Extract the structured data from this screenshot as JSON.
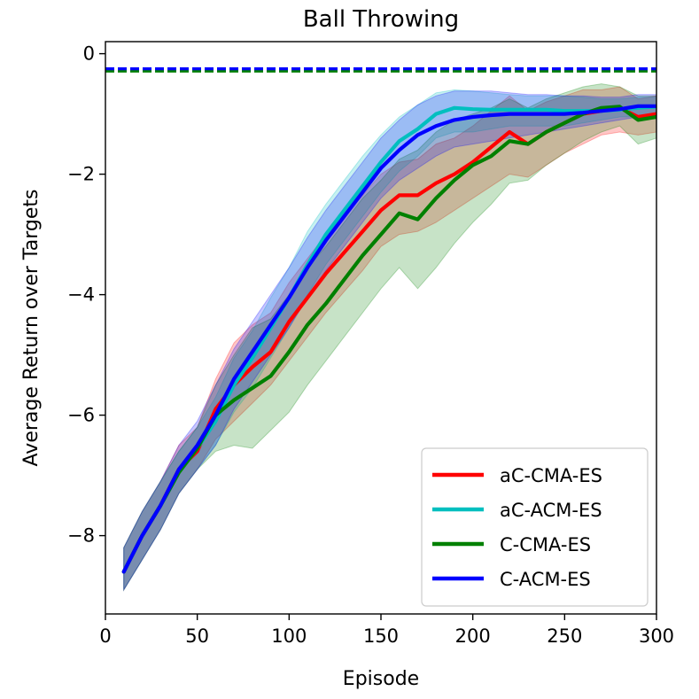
{
  "chart_data": {
    "type": "line",
    "title": "Ball Throwing",
    "xlabel": "Episode",
    "ylabel": "Average Return over Targets",
    "xlim": [
      0,
      300
    ],
    "ylim": [
      -9.3,
      0.2
    ],
    "xticks": [
      0,
      50,
      100,
      150,
      200,
      250,
      300
    ],
    "xtick_labels": [
      "0",
      "50",
      "100",
      "150",
      "200",
      "250",
      "300"
    ],
    "yticks": [
      -8,
      -6,
      -4,
      -2,
      0
    ],
    "ytick_labels": [
      "−8",
      "−6",
      "−4",
      "−2",
      "0"
    ],
    "legend_position": "lower-right",
    "reference_lines": [
      {
        "name": "reference-green",
        "y": -0.29,
        "color": "#008000",
        "style": "dashed"
      },
      {
        "name": "reference-blue",
        "y": -0.25,
        "color": "#0000ff",
        "style": "dashed"
      }
    ],
    "x": [
      10,
      20,
      30,
      40,
      50,
      60,
      70,
      80,
      90,
      100,
      110,
      120,
      130,
      140,
      150,
      160,
      170,
      180,
      190,
      200,
      210,
      220,
      230,
      240,
      250,
      260,
      270,
      280,
      290,
      300
    ],
    "series": [
      {
        "name": "aC-CMA-ES",
        "color": "#ff0000",
        "values": [
          -8.6,
          -8.0,
          -7.5,
          -6.9,
          -6.6,
          -5.9,
          -5.5,
          -5.2,
          -4.95,
          -4.45,
          -4.05,
          -3.65,
          -3.3,
          -2.95,
          -2.6,
          -2.35,
          -2.35,
          -2.15,
          -2.0,
          -1.8,
          -1.55,
          -1.3,
          -1.5,
          -1.3,
          -1.15,
          -1.0,
          -0.95,
          -0.9,
          -1.05,
          -1.0
        ],
        "lower": [
          -8.9,
          -8.4,
          -7.9,
          -7.3,
          -6.9,
          -6.4,
          -6.1,
          -5.8,
          -5.5,
          -5.1,
          -4.7,
          -4.3,
          -3.95,
          -3.6,
          -3.2,
          -3.0,
          -2.95,
          -2.8,
          -2.6,
          -2.4,
          -2.2,
          -2.0,
          -2.05,
          -1.85,
          -1.65,
          -1.5,
          -1.35,
          -1.3,
          -1.35,
          -1.3
        ],
        "upper": [
          -8.2,
          -7.6,
          -7.1,
          -6.5,
          -6.2,
          -5.4,
          -4.8,
          -4.5,
          -4.3,
          -3.8,
          -3.4,
          -3.0,
          -2.7,
          -2.35,
          -2.0,
          -1.8,
          -1.75,
          -1.5,
          -1.4,
          -1.2,
          -0.95,
          -0.7,
          -0.95,
          -0.8,
          -0.7,
          -0.6,
          -0.6,
          -0.55,
          -0.75,
          -0.7
        ]
      },
      {
        "name": "aC-ACM-ES",
        "color": "#00bfbf",
        "values": [
          -8.6,
          -8.0,
          -7.5,
          -6.95,
          -6.55,
          -6.1,
          -5.5,
          -5.05,
          -4.55,
          -4.05,
          -3.5,
          -3.0,
          -2.6,
          -2.2,
          -1.8,
          -1.45,
          -1.25,
          -1.0,
          -0.9,
          -0.92,
          -0.93,
          -0.93,
          -0.93,
          -0.93,
          -0.95,
          -0.95,
          -0.95,
          -0.93,
          -0.9,
          -0.88
        ],
        "lower": [
          -8.9,
          -8.4,
          -7.9,
          -7.3,
          -6.9,
          -6.5,
          -5.95,
          -5.55,
          -5.05,
          -4.55,
          -4.0,
          -3.5,
          -3.1,
          -2.7,
          -2.3,
          -1.95,
          -1.7,
          -1.4,
          -1.3,
          -1.3,
          -1.25,
          -1.2,
          -1.2,
          -1.2,
          -1.2,
          -1.15,
          -1.1,
          -1.05,
          -1.05,
          -1.0
        ],
        "upper": [
          -8.2,
          -7.6,
          -7.1,
          -6.6,
          -6.2,
          -5.7,
          -5.05,
          -4.6,
          -4.05,
          -3.55,
          -2.95,
          -2.5,
          -2.1,
          -1.7,
          -1.35,
          -1.05,
          -0.85,
          -0.65,
          -0.6,
          -0.62,
          -0.65,
          -0.68,
          -0.7,
          -0.7,
          -0.7,
          -0.72,
          -0.75,
          -0.75,
          -0.72,
          -0.72
        ]
      },
      {
        "name": "C-CMA-ES",
        "color": "#008000",
        "values": [
          -8.6,
          -8.0,
          -7.5,
          -6.95,
          -6.55,
          -6.0,
          -5.75,
          -5.55,
          -5.35,
          -4.95,
          -4.5,
          -4.15,
          -3.75,
          -3.35,
          -3.0,
          -2.65,
          -2.75,
          -2.4,
          -2.1,
          -1.85,
          -1.7,
          -1.45,
          -1.5,
          -1.3,
          -1.15,
          -1.0,
          -0.9,
          -0.88,
          -1.1,
          -1.05
        ],
        "lower": [
          -8.9,
          -8.4,
          -7.9,
          -7.3,
          -6.9,
          -6.6,
          -6.5,
          -6.55,
          -6.25,
          -5.95,
          -5.5,
          -5.1,
          -4.7,
          -4.3,
          -3.9,
          -3.55,
          -3.9,
          -3.55,
          -3.15,
          -2.8,
          -2.5,
          -2.15,
          -2.1,
          -1.85,
          -1.65,
          -1.45,
          -1.3,
          -1.2,
          -1.5,
          -1.4
        ],
        "upper": [
          -8.2,
          -7.6,
          -7.1,
          -6.6,
          -6.2,
          -5.5,
          -5.0,
          -4.55,
          -4.4,
          -4.0,
          -3.55,
          -3.2,
          -2.8,
          -2.4,
          -2.1,
          -1.75,
          -1.6,
          -1.3,
          -1.1,
          -1.0,
          -0.9,
          -0.75,
          -0.9,
          -0.75,
          -0.65,
          -0.55,
          -0.5,
          -0.55,
          -0.7,
          -0.7
        ]
      },
      {
        "name": "C-ACM-ES",
        "color": "#0000ff",
        "values": [
          -8.6,
          -8.0,
          -7.5,
          -6.9,
          -6.5,
          -6.0,
          -5.4,
          -4.95,
          -4.5,
          -4.05,
          -3.55,
          -3.1,
          -2.7,
          -2.3,
          -1.9,
          -1.6,
          -1.35,
          -1.2,
          -1.1,
          -1.05,
          -1.02,
          -1.0,
          -1.0,
          -1.0,
          -1.0,
          -0.98,
          -0.95,
          -0.92,
          -0.87,
          -0.87
        ],
        "lower": [
          -8.9,
          -8.4,
          -7.9,
          -7.3,
          -6.9,
          -6.5,
          -5.9,
          -5.45,
          -5.0,
          -4.55,
          -4.05,
          -3.6,
          -3.2,
          -2.8,
          -2.4,
          -2.1,
          -1.9,
          -1.7,
          -1.55,
          -1.5,
          -1.45,
          -1.4,
          -1.35,
          -1.3,
          -1.25,
          -1.2,
          -1.15,
          -1.1,
          -1.05,
          -1.05
        ],
        "upper": [
          -8.2,
          -7.6,
          -7.1,
          -6.5,
          -6.1,
          -5.5,
          -4.9,
          -4.45,
          -4.0,
          -3.55,
          -3.05,
          -2.6,
          -2.2,
          -1.8,
          -1.4,
          -1.1,
          -0.85,
          -0.7,
          -0.62,
          -0.62,
          -0.62,
          -0.65,
          -0.68,
          -0.68,
          -0.7,
          -0.7,
          -0.72,
          -0.72,
          -0.68,
          -0.68
        ]
      }
    ]
  }
}
